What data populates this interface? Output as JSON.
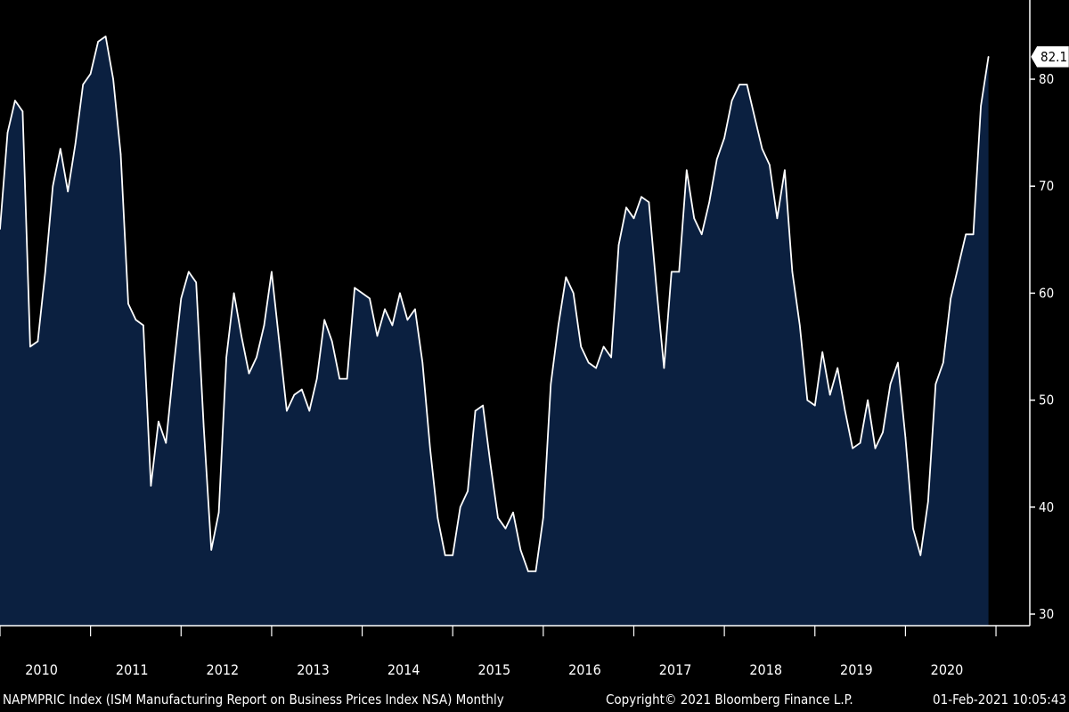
{
  "colors": {
    "background": "#000000",
    "area_fill": "#0b2040",
    "line": "#ffffff",
    "axis": "#ffffff",
    "label_box": "#ffffff"
  },
  "footer": {
    "left": "NAPMPRIC Index (ISM Manufacturing Report on Business Prices Index NSA)  Monthly",
    "center": "Copyright© 2021 Bloomberg Finance L.P.",
    "right": "01-Feb-2021 10:05:43"
  },
  "last_value_label": "82.1",
  "chart_data": {
    "type": "area",
    "title": "",
    "xlabel": "",
    "ylabel": "",
    "ylim": [
      30,
      87
    ],
    "yticks": [
      30,
      40,
      50,
      60,
      70,
      80
    ],
    "ytick_labels": [
      "30",
      "40",
      "50",
      "60",
      "70",
      "80"
    ],
    "x_start": "2010-01",
    "x_end": "2021-01",
    "frequency": "monthly",
    "year_labels": [
      "2010",
      "2011",
      "2012",
      "2013",
      "2014",
      "2015",
      "2016",
      "2017",
      "2018",
      "2019",
      "2020"
    ],
    "series": [
      {
        "values": [
          66.0,
          75.0,
          78.0,
          77.0,
          55.0,
          55.5,
          62.0,
          70.0,
          73.5,
          69.5,
          74.0,
          79.5,
          80.5,
          83.5,
          84.0,
          80.0,
          73.0,
          59.0,
          57.5,
          57.0,
          42.0,
          48.0,
          46.0,
          53.0,
          59.5,
          62.0,
          61.0,
          47.5,
          36.0,
          39.5,
          54.0,
          60.0,
          56.0,
          52.5,
          54.0,
          57.0,
          62.0,
          55.5,
          49.0,
          50.5,
          51.0,
          49.0,
          52.0,
          57.5,
          55.5,
          52.0,
          52.0,
          60.5,
          60.0,
          59.5,
          56.0,
          58.5,
          57.0,
          60.0,
          57.5,
          58.5,
          53.5,
          45.5,
          39.0,
          35.5,
          35.5,
          40.0,
          41.5,
          49.0,
          49.5,
          44.0,
          39.0,
          38.0,
          39.5,
          36.0,
          34.0,
          34.0,
          39.0,
          51.5,
          57.0,
          61.5,
          60.0,
          55.0,
          53.5,
          53.0,
          55.0,
          54.0,
          64.5,
          68.0,
          67.0,
          69.0,
          68.5,
          60.5,
          53.0,
          62.0,
          62.0,
          71.5,
          67.0,
          65.5,
          68.5,
          72.5,
          74.5,
          78.0,
          79.5,
          79.5,
          76.5,
          73.5,
          72.0,
          67.0,
          71.5,
          62.0,
          57.0,
          50.0,
          49.5,
          54.5,
          50.5,
          53.0,
          49.0,
          45.5,
          46.0,
          50.0,
          45.5,
          47.0,
          51.5,
          53.5,
          46.5,
          38.0,
          35.5,
          40.5,
          51.5,
          53.5,
          59.5,
          62.5,
          65.5,
          65.5,
          77.5,
          82.1
        ]
      }
    ],
    "grid": false,
    "legend": "none"
  }
}
